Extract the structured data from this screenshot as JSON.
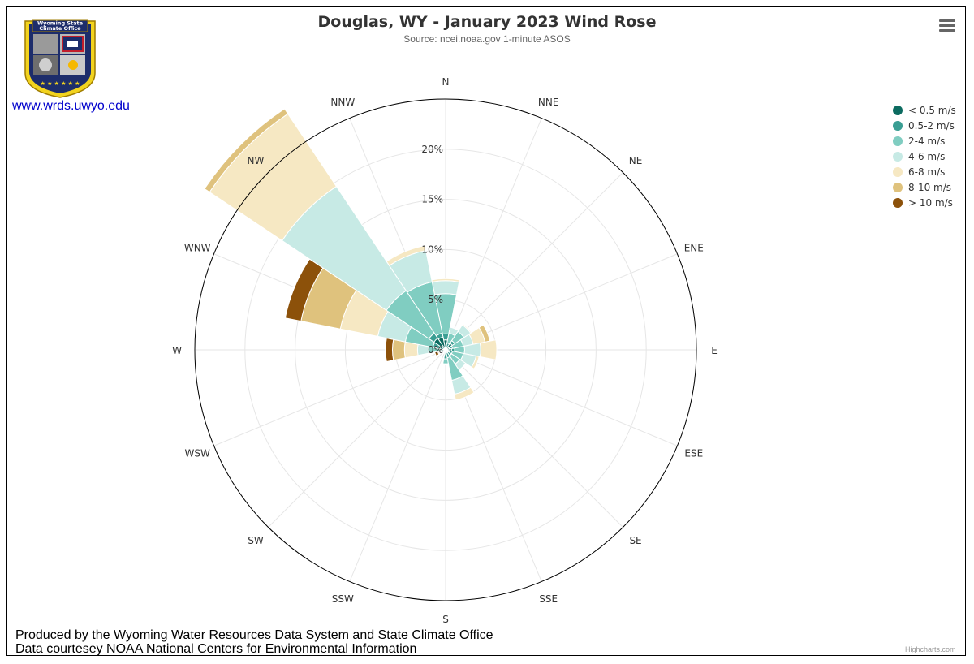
{
  "title": "Douglas, WY - January 2023 Wind Rose",
  "subtitle": "Source: ncei.noaa.gov 1-minute ASOS",
  "logo": {
    "text_line1": "Wyoming State",
    "text_line2": "Climate Office"
  },
  "site_link": "www.wrds.uwyo.edu",
  "credits": {
    "line1": "Produced by the Wyoming Water Resources Data System and State Climate Office",
    "line2": "Data courtesey NOAA National Centers for Environmental Information",
    "highcharts": "Highcharts.com"
  },
  "chart_data": {
    "type": "windrose",
    "unit": "%",
    "ylim": [
      0,
      25
    ],
    "radial_ticks": [
      "0%",
      "5%",
      "10%",
      "15%",
      "20%"
    ],
    "radial_tick_values": [
      0,
      5,
      10,
      15,
      20,
      25
    ],
    "directions": [
      "N",
      "NNE",
      "NE",
      "ENE",
      "E",
      "ESE",
      "SE",
      "SSE",
      "S",
      "SSW",
      "SW",
      "WSW",
      "W",
      "WNW",
      "NW",
      "NNW"
    ],
    "series": [
      {
        "name": "< 0.5 m/s",
        "color": "#0c6b60",
        "values": [
          1.0,
          0.3,
          0.8,
          0.4,
          0.6,
          0.4,
          0.3,
          0.3,
          0.4,
          0.1,
          0.1,
          0.1,
          0.1,
          0.6,
          1.4,
          1.3
        ]
      },
      {
        "name": "0.5-2 m/s",
        "color": "#3a9e93",
        "values": [
          0.6,
          0.4,
          0.3,
          0.3,
          0.3,
          0.3,
          0.4,
          0.5,
          0.5,
          0.2,
          0.1,
          0.1,
          0.4,
          0.7,
          0.6,
          0.4
        ]
      },
      {
        "name": "2-4 m/s",
        "color": "#80cdc1",
        "values": [
          4.0,
          1.0,
          1.1,
          1.1,
          1.0,
          1.1,
          1.0,
          2.3,
          0.5,
          0.1,
          0.1,
          0.3,
          1.2,
          2.8,
          5.1,
          5.2
        ]
      },
      {
        "name": "4-6 m/s",
        "color": "#c7eae5",
        "values": [
          1.3,
          0.6,
          0.8,
          1.0,
          1.6,
          1.3,
          0.7,
          1.4,
          0.1,
          0.0,
          0.0,
          0.1,
          1.1,
          2.8,
          12.5,
          3.2
        ]
      },
      {
        "name": "6-8 m/s",
        "color": "#f6e8c3",
        "values": [
          0.2,
          0.0,
          0.1,
          1.2,
          1.6,
          0.3,
          0.0,
          0.6,
          0.0,
          0.0,
          0.0,
          0.1,
          1.3,
          3.8,
          8.7,
          0.5
        ]
      },
      {
        "name": "8-10 m/s",
        "color": "#dfc27d",
        "values": [
          0.0,
          0.0,
          0.0,
          0.5,
          0.0,
          0.0,
          0.0,
          0.0,
          0.0,
          0.0,
          0.0,
          0.1,
          1.2,
          4.0,
          0.6,
          0.0
        ]
      },
      {
        "name": "> 10 m/s",
        "color": "#8c510a",
        "values": [
          0.0,
          0.0,
          0.0,
          0.0,
          0.0,
          0.0,
          0.0,
          0.0,
          0.0,
          0.0,
          0.0,
          0.3,
          0.7,
          1.6,
          0.0,
          0.0
        ]
      }
    ],
    "legend_position": "top-right"
  }
}
